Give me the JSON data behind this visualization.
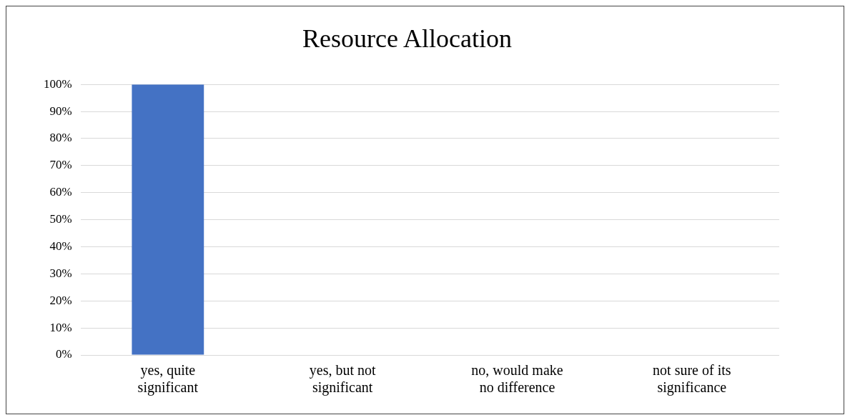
{
  "chart_data": {
    "type": "bar",
    "title": "Resource Allocation",
    "categories": [
      "yes, quite significant",
      "yes, but not significant",
      "no, would make no difference",
      "not sure of its significance"
    ],
    "values": [
      100,
      0,
      0,
      0
    ],
    "color": "#4472c4",
    "ylim": [
      0,
      100
    ],
    "yticks": [
      {
        "value": 0,
        "label": "0%"
      },
      {
        "value": 10,
        "label": "10%"
      },
      {
        "value": 20,
        "label": "20%"
      },
      {
        "value": 30,
        "label": "30%"
      },
      {
        "value": 40,
        "label": "40%"
      },
      {
        "value": 50,
        "label": "50%"
      },
      {
        "value": 60,
        "label": "60%"
      },
      {
        "value": 70,
        "label": "70%"
      },
      {
        "value": 80,
        "label": "80%"
      },
      {
        "value": 90,
        "label": "90%"
      },
      {
        "value": 100,
        "label": "100%"
      }
    ],
    "grid": "y",
    "legend": false
  }
}
